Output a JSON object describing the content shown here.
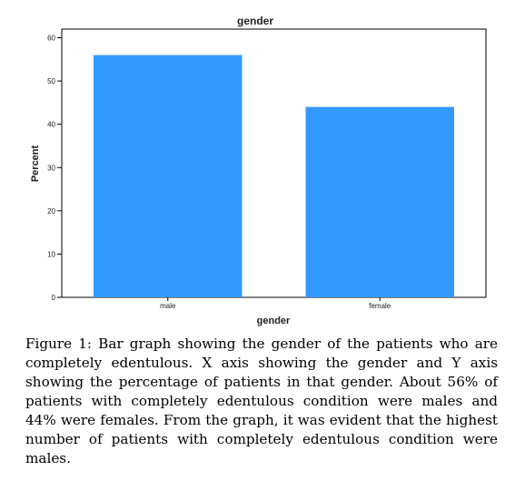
{
  "chart_data": {
    "type": "bar",
    "title": "gender",
    "xlabel": "gender",
    "ylabel": "Percent",
    "categories": [
      "male",
      "female"
    ],
    "values": [
      56,
      44
    ],
    "ylim": [
      0,
      62
    ],
    "yticks": [
      0,
      10,
      20,
      30,
      40,
      50,
      60
    ],
    "grid": false,
    "bar_color": "#3399FF"
  },
  "caption": "Figure 1: Bar graph showing the gender of the patients who are completely edentulous. X axis showing the gender and Y axis showing the percentage of patients in that gender. About 56% of patients with completely edentulous condition were males and 44% were females. From the graph, it was evident that the highest number of patients with completely edentulous condition were males."
}
